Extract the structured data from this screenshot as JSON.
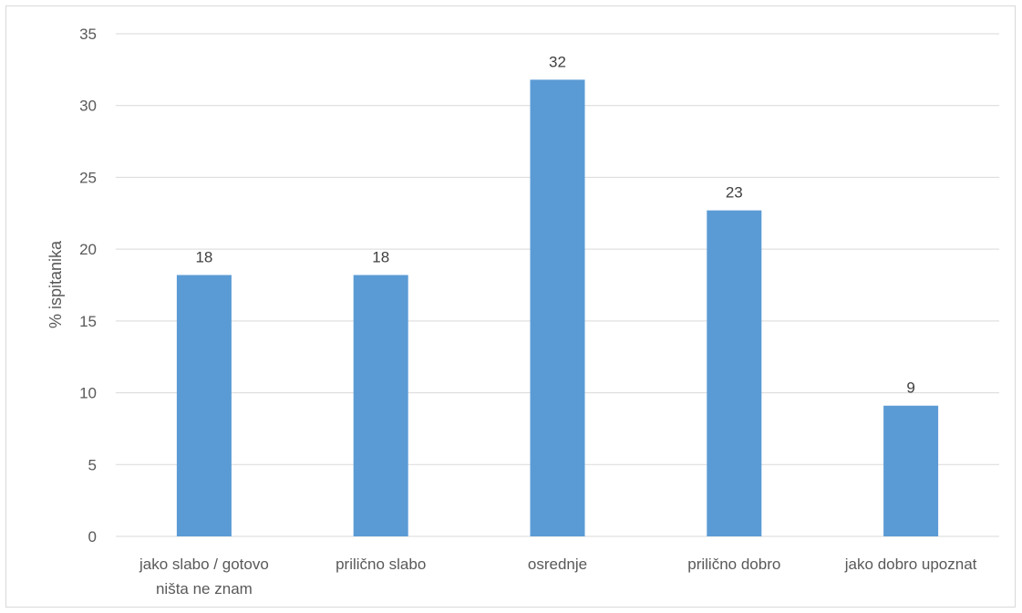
{
  "chart_data": {
    "type": "bar",
    "categories": [
      [
        "jako slabo / gotovo",
        "ništa ne znam"
      ],
      [
        "prilično slabo"
      ],
      [
        "osrednje"
      ],
      [
        "prilično dobro"
      ],
      [
        "jako dobro upoznat"
      ]
    ],
    "values": [
      18.2,
      18.2,
      31.8,
      22.7,
      9.1
    ],
    "data_labels": [
      "18",
      "18",
      "32",
      "23",
      "9"
    ],
    "title": "",
    "xlabel": "",
    "ylabel": "% ispitanika",
    "ylim": [
      0,
      35
    ],
    "yticks": [
      0,
      5,
      10,
      15,
      20,
      25,
      30,
      35
    ],
    "grid": true,
    "legend": "none",
    "bar_color": "#5b9bd5",
    "grid_color": "#d9d9d9"
  }
}
